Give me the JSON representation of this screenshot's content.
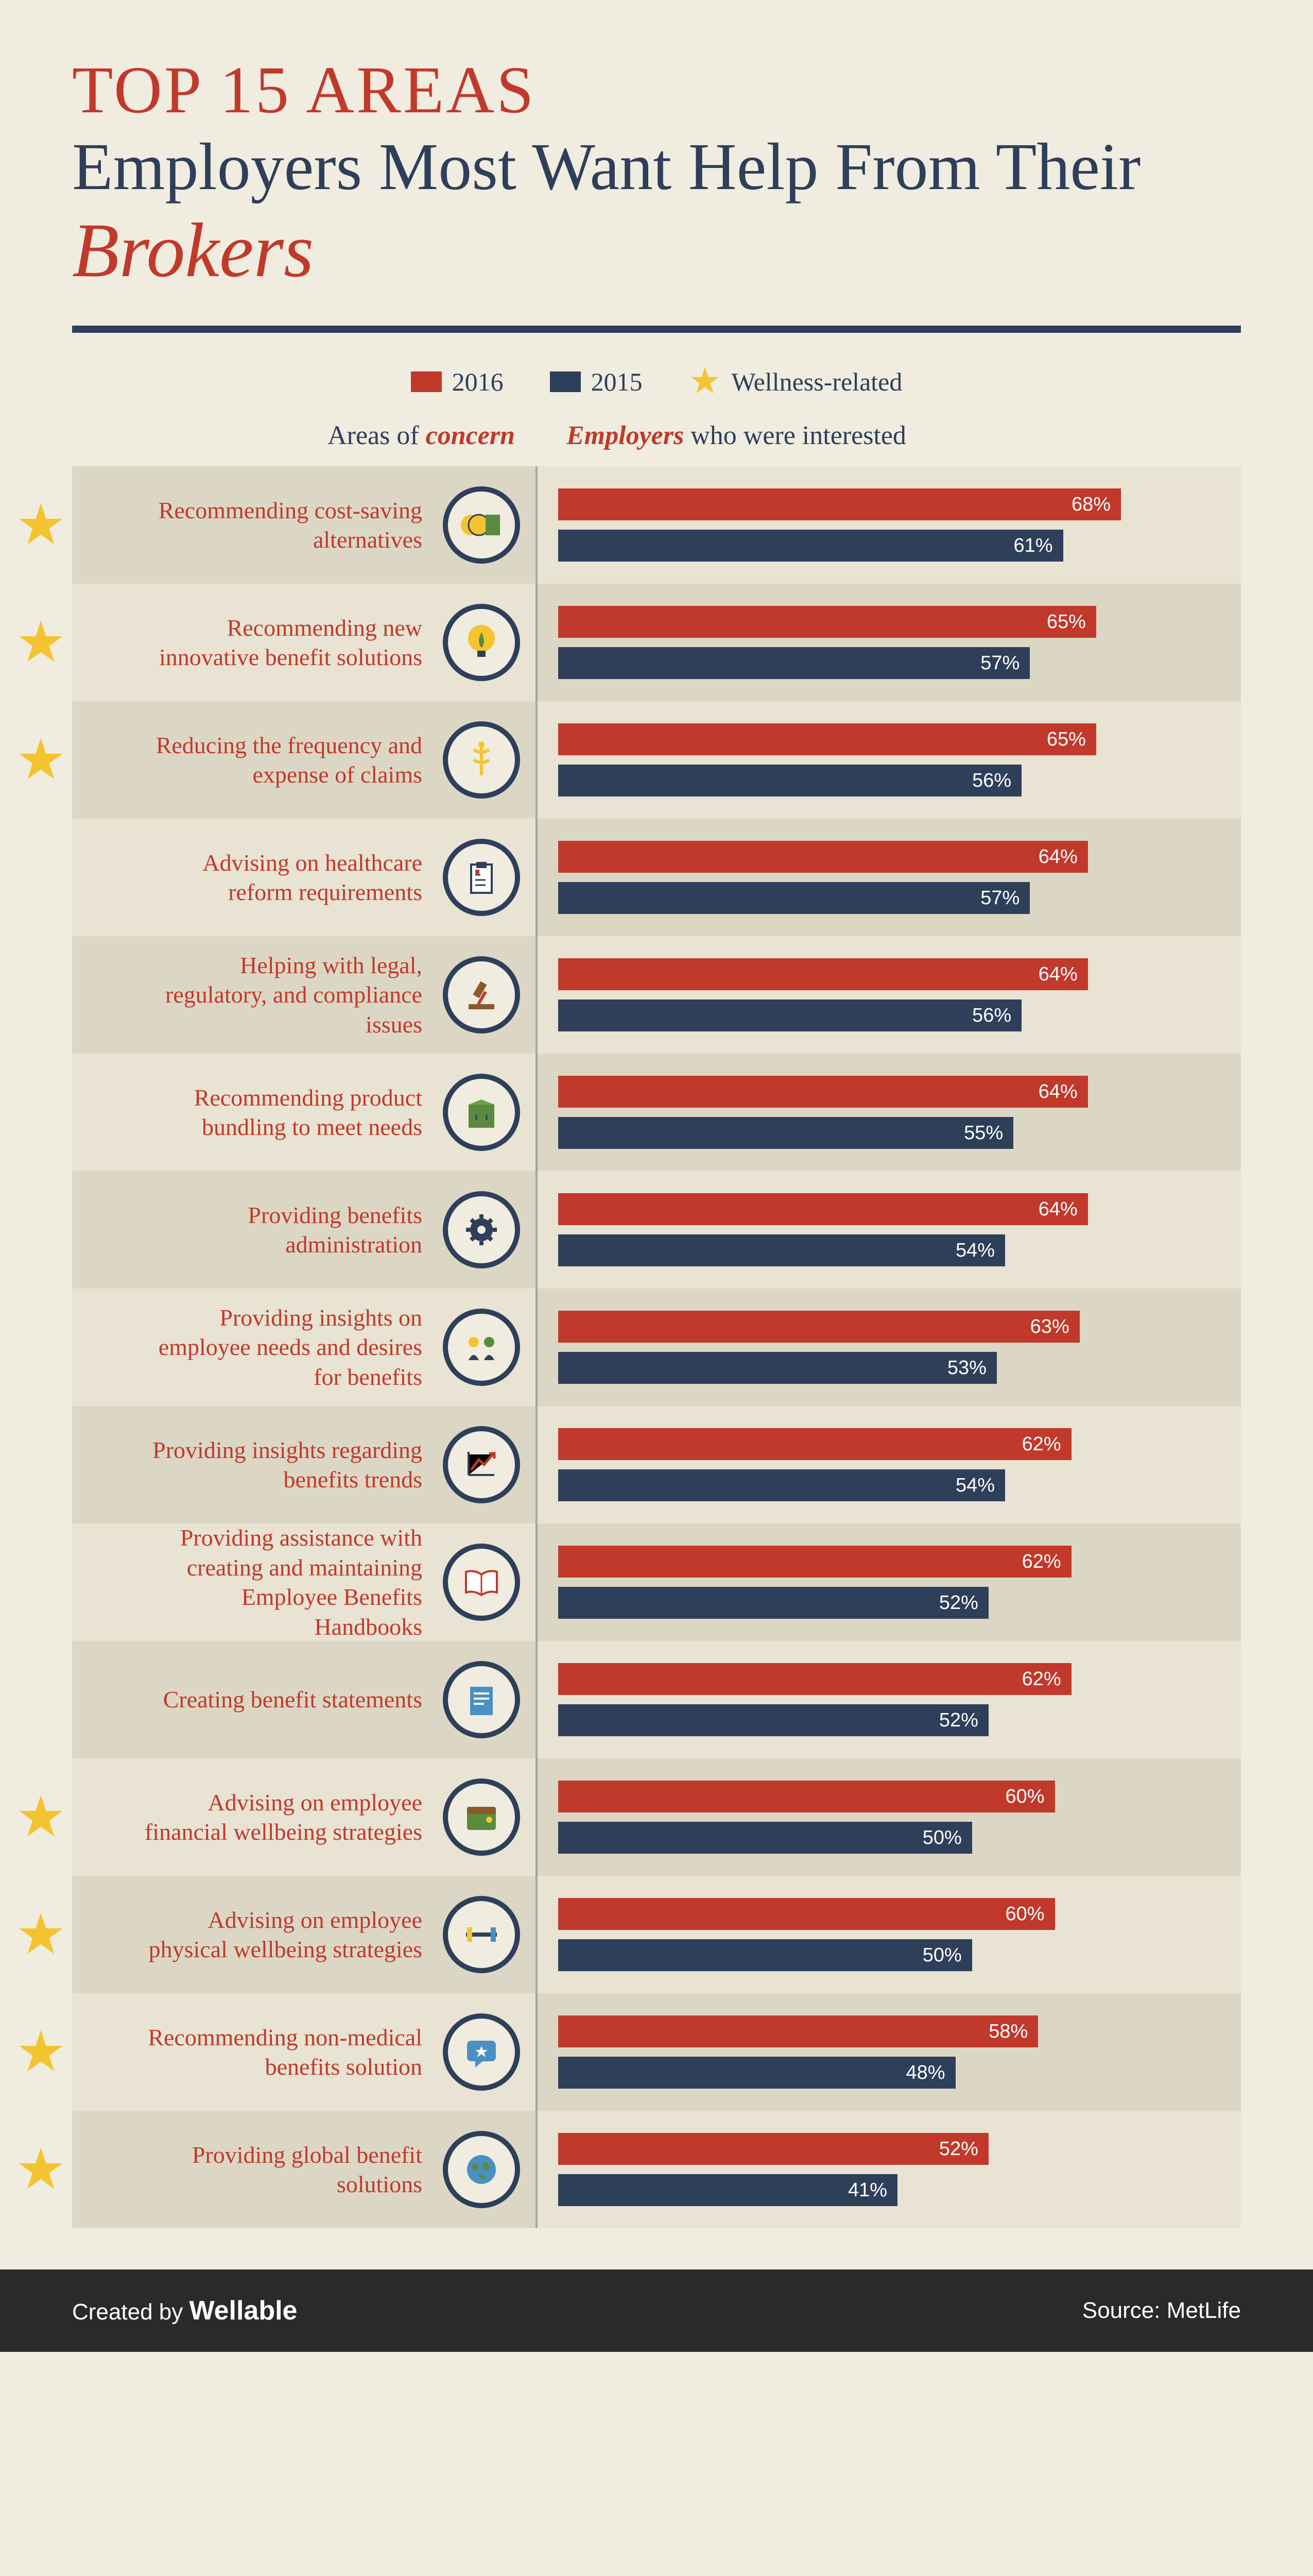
{
  "colors": {
    "bg": "#f0ecdf",
    "red": "#c1392b",
    "navy": "#2e3f5a",
    "star": "#f4c430",
    "row_alt_a": "#dcd7c5",
    "row_alt_b": "#e8e3d2",
    "icon_border": "#2e3f5a",
    "icon_fill": "#f0ecdf"
  },
  "title": {
    "top": "TOP 15 AREAS",
    "sub": "Employers Most Want Help From Their ",
    "sub_em": "Brokers"
  },
  "legend": {
    "y2016": "2016",
    "y2015": "2015",
    "wellness": "Wellness-related"
  },
  "columns": {
    "left_a": "Areas of ",
    "left_b": "concern",
    "right_a": "Employers",
    "right_b": " who were interested"
  },
  "bar_max_pct": 80,
  "rows": [
    {
      "star": true,
      "label": "Recommending cost-saving alternatives",
      "icon": "coins",
      "v2016": 68,
      "v2015": 61
    },
    {
      "star": true,
      "label": "Recommending new innovative benefit solutions",
      "icon": "bulb",
      "v2016": 65,
      "v2015": 57
    },
    {
      "star": true,
      "label": "Reducing the frequency and expense of claims",
      "icon": "caduceus",
      "v2016": 65,
      "v2015": 56
    },
    {
      "star": false,
      "label": "Advising on healthcare reform requirements",
      "icon": "clipboard",
      "v2016": 64,
      "v2015": 57
    },
    {
      "star": false,
      "label": "Helping with legal, regulatory, and compliance issues",
      "icon": "gavel",
      "v2016": 64,
      "v2015": 56
    },
    {
      "star": false,
      "label": "Recommending product bundling to meet needs",
      "icon": "box",
      "v2016": 64,
      "v2015": 55
    },
    {
      "star": false,
      "label": "Providing benefits administration",
      "icon": "gear",
      "v2016": 64,
      "v2015": 54
    },
    {
      "star": false,
      "label": "Providing insights on employee needs and desires for benefits",
      "icon": "people",
      "v2016": 63,
      "v2015": 53
    },
    {
      "star": false,
      "label": "Providing insights regarding benefits trends",
      "icon": "trend",
      "v2016": 62,
      "v2015": 54
    },
    {
      "star": false,
      "label": "Providing assistance with creating and maintaining Employee Benefits Handbooks",
      "icon": "book",
      "v2016": 62,
      "v2015": 52
    },
    {
      "star": false,
      "label": "Creating benefit statements",
      "icon": "statement",
      "v2016": 62,
      "v2015": 52
    },
    {
      "star": true,
      "label": "Advising on employee financial wellbeing strategies",
      "icon": "wallet",
      "v2016": 60,
      "v2015": 50
    },
    {
      "star": true,
      "label": "Advising on employee physical wellbeing strategies",
      "icon": "barbell",
      "v2016": 60,
      "v2015": 50
    },
    {
      "star": true,
      "label": "Recommending non-medical benefits solution",
      "icon": "chat",
      "v2016": 58,
      "v2015": 48
    },
    {
      "star": true,
      "label": "Providing global benefit solutions",
      "icon": "globe",
      "v2016": 52,
      "v2015": 41
    }
  ],
  "footer": {
    "created_by": "Created by ",
    "brand": "Wellable",
    "source": "Source: MetLife"
  }
}
